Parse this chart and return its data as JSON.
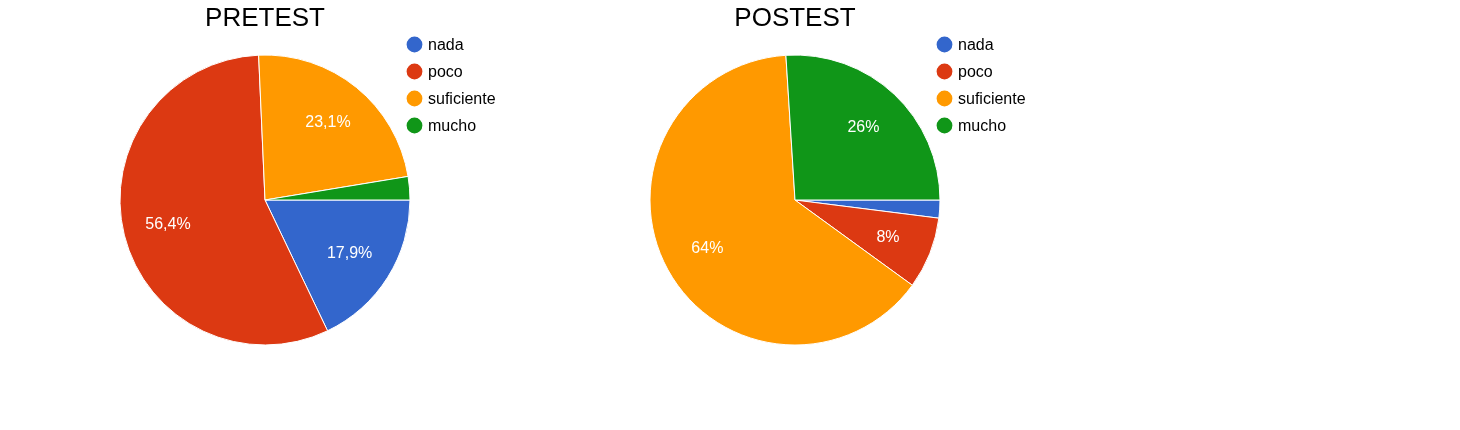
{
  "chart_data": [
    {
      "type": "pie",
      "title": "PRETEST",
      "categories": [
        "nada",
        "poco",
        "suficiente",
        "mucho"
      ],
      "values": [
        17.9,
        56.4,
        23.1,
        2.6
      ],
      "colors": [
        "#3366cc",
        "#dc3912",
        "#ff9900",
        "#109618"
      ],
      "value_labels": [
        "17,9%",
        "56,4%",
        "23,1%",
        null
      ],
      "legend": "right"
    },
    {
      "type": "pie",
      "title": "POSTEST",
      "categories": [
        "nada",
        "poco",
        "suficiente",
        "mucho"
      ],
      "values": [
        2,
        8,
        64,
        26
      ],
      "colors": [
        "#3366cc",
        "#dc3912",
        "#ff9900",
        "#109618"
      ],
      "value_labels": [
        null,
        "8%",
        "64%",
        "26%"
      ],
      "legend": "right"
    }
  ]
}
